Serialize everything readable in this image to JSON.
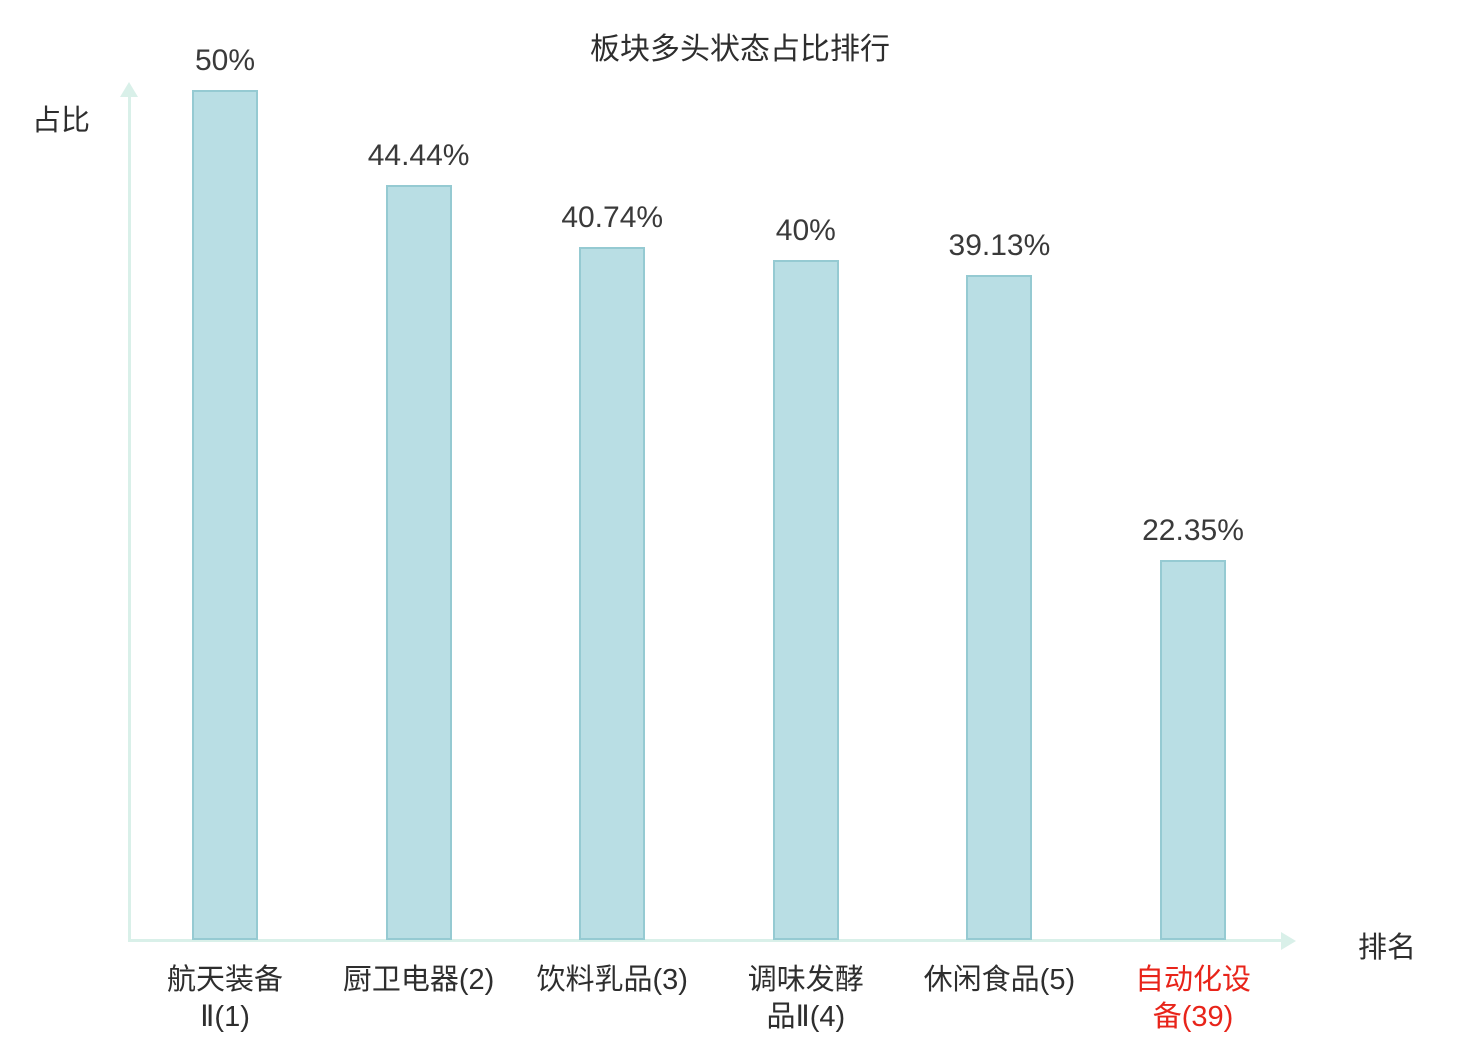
{
  "chart_data": {
    "type": "bar",
    "title": "板块多头状态占比排行",
    "xlabel": "排名",
    "ylabel": "占比",
    "ylim": [
      0,
      50
    ],
    "grid": false,
    "legend": "none",
    "bar_color": "#b9dee4",
    "bar_border_color": "#95cad2",
    "axis_color": "#d9f0e9",
    "text_color": "#3a3a3a",
    "highlight_color": "#e8241a",
    "highlight_index": 5,
    "categories": [
      "航天装备\nⅡ(1)",
      "厨卫电器(2)",
      "饮料乳品(3)",
      "调味发酵\n品Ⅱ(4)",
      "休闲食品(5)",
      "自动化设\n备(39)"
    ],
    "values": [
      50,
      44.44,
      40.74,
      40,
      39.13,
      22.35
    ],
    "value_labels": [
      "50%",
      "44.44%",
      "40.74%",
      "40%",
      "39.13%",
      "22.35%"
    ]
  }
}
